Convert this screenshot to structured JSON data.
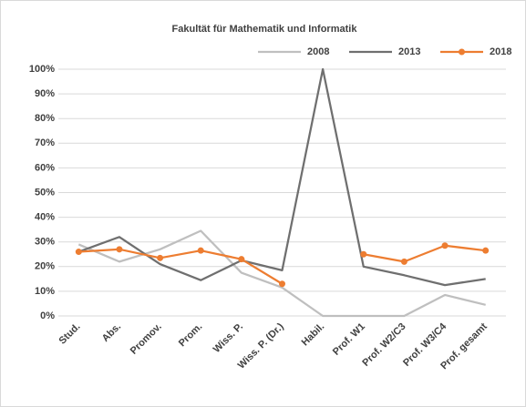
{
  "chart_data": {
    "type": "line",
    "title": "Fakultät für Mathematik und Informatik",
    "categories": [
      "Stud.",
      "Abs.",
      "Promov.",
      "Prom.",
      "Wiss. P.",
      "Wiss. P. (Dr.)",
      "Habil.",
      "Prof. W1",
      "Prof. W2/C3",
      "Prof. W3/C4",
      "Prof. gesamt"
    ],
    "series": [
      {
        "name": "2008",
        "color": "#bfbfbf",
        "marker": false,
        "values": [
          29,
          22,
          27,
          34.5,
          17.5,
          11.5,
          0,
          0,
          0,
          8.5,
          4.5
        ]
      },
      {
        "name": "2013",
        "color": "#6f6f6f",
        "marker": false,
        "values": [
          26,
          32,
          21,
          14.5,
          22.5,
          18.5,
          100,
          20,
          16.5,
          12.5,
          15
        ]
      },
      {
        "name": "2018",
        "color": "#ed7d31",
        "marker": true,
        "values": [
          26,
          27,
          23.5,
          26.5,
          23,
          13,
          null,
          25,
          22,
          28.5,
          26.5
        ]
      }
    ],
    "ylim": [
      0,
      100
    ],
    "yticks": [
      {
        "value": 0,
        "label": "0%"
      },
      {
        "value": 10,
        "label": "10%"
      },
      {
        "value": 20,
        "label": "20%"
      },
      {
        "value": 30,
        "label": "30%"
      },
      {
        "value": 40,
        "label": "40%"
      },
      {
        "value": 50,
        "label": "50%"
      },
      {
        "value": 60,
        "label": "60%"
      },
      {
        "value": 70,
        "label": "70%"
      },
      {
        "value": 80,
        "label": "80%"
      },
      {
        "value": 90,
        "label": "90%"
      },
      {
        "value": 100,
        "label": "100%"
      }
    ],
    "grid": true,
    "legend": "top-right"
  }
}
